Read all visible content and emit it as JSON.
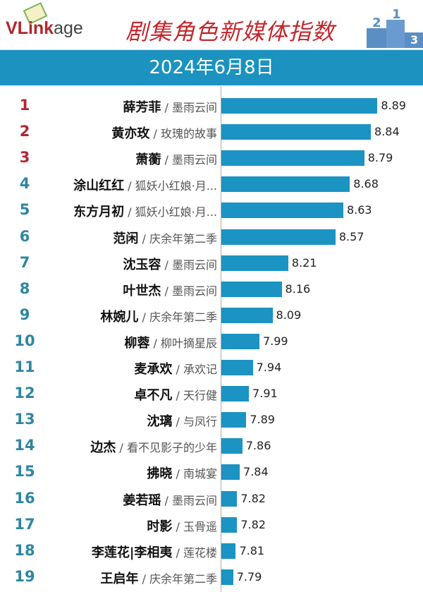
{
  "header": {
    "logo": "VLinkage",
    "logo_main": "VLink",
    "logo_suffix": "age",
    "title": "剧集角色新媒体指数",
    "date": "2024年6月8日"
  },
  "colors": {
    "top3": "#b5242f",
    "rank": "#2e86a0",
    "bar": "#1b93c3",
    "band": "#1b92bf"
  },
  "chart_data": {
    "type": "bar",
    "orientation": "horizontal",
    "title": "剧集角色新媒体指数",
    "subtitle": "2024年6月8日",
    "xlim": [
      7.7,
      9.0
    ],
    "categories": [
      {
        "rank": "1",
        "role": "薛芳菲",
        "show": "墨雨云间"
      },
      {
        "rank": "2",
        "role": "黄亦玫",
        "show": "玫瑰的故事"
      },
      {
        "rank": "3",
        "role": "萧蘅",
        "show": "墨雨云间"
      },
      {
        "rank": "4",
        "role": "涂山红红",
        "show": "狐妖小红娘·月..."
      },
      {
        "rank": "5",
        "role": "东方月初",
        "show": "狐妖小红娘·月..."
      },
      {
        "rank": "6",
        "role": "范闲",
        "show": "庆余年第二季"
      },
      {
        "rank": "7",
        "role": "沈玉容",
        "show": "墨雨云间"
      },
      {
        "rank": "8",
        "role": "叶世杰",
        "show": "墨雨云间"
      },
      {
        "rank": "9",
        "role": "林婉儿",
        "show": "庆余年第二季"
      },
      {
        "rank": "10",
        "role": "柳蓉",
        "show": "柳叶摘星辰"
      },
      {
        "rank": "11",
        "role": "麦承欢",
        "show": "承欢记"
      },
      {
        "rank": "12",
        "role": "卓不凡",
        "show": "天行健"
      },
      {
        "rank": "13",
        "role": "沈璃",
        "show": "与凤行"
      },
      {
        "rank": "14",
        "role": "边杰",
        "show": "看不见影子的少年"
      },
      {
        "rank": "15",
        "role": "拂晓",
        "show": "南城宴"
      },
      {
        "rank": "16",
        "role": "姜若瑶",
        "show": "墨雨云间"
      },
      {
        "rank": "17",
        "role": "时影",
        "show": "玉骨遥"
      },
      {
        "rank": "18",
        "role": "李莲花|李相夷",
        "show": "莲花楼"
      },
      {
        "rank": "19",
        "role": "王启年",
        "show": "庆余年第二季"
      }
    ],
    "values": [
      "8.89",
      "8.84",
      "8.79",
      "8.68",
      "8.63",
      "8.57",
      "8.21",
      "8.16",
      "8.09",
      "7.99",
      "7.94",
      "7.91",
      "7.89",
      "7.86",
      "7.84",
      "7.82",
      "7.82",
      "7.81",
      "7.79"
    ]
  }
}
